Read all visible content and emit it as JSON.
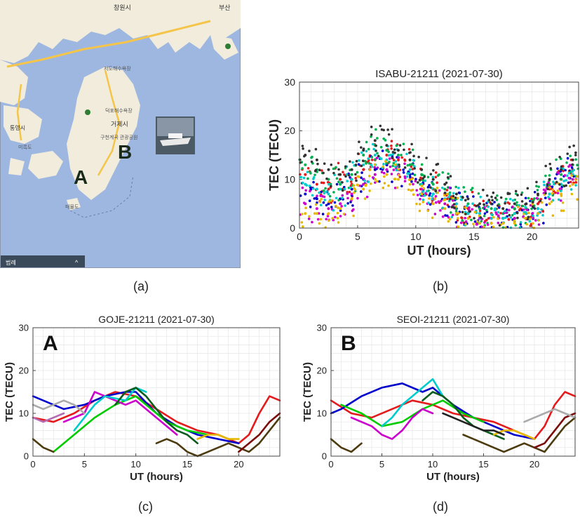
{
  "panels": {
    "a": "(a)",
    "b": "(b)",
    "c": "(c)",
    "d": "(d)"
  },
  "map": {
    "labels": [
      {
        "text": "창원시"
      },
      {
        "text": "부산"
      },
      {
        "text": "통영시"
      },
      {
        "text": "거제시"
      },
      {
        "text": "구천계곡 관광공원"
      },
      {
        "text": "덕포해수욕장"
      },
      {
        "text": "저도해수욕장"
      },
      {
        "text": "미륵도"
      },
      {
        "text": "매물도"
      }
    ],
    "site_a": "A",
    "site_b": "B",
    "footer_text": "범례",
    "colors": {
      "sea": "#9db7e1",
      "land": "#f1ecdc",
      "road": "#f5c54a"
    }
  },
  "chart_data": [
    {
      "id": "b",
      "type": "scatter",
      "title": "ISABU-21211 (2021-07-30)",
      "xlabel": "UT (hours)",
      "ylabel": "TEC (TECU)",
      "xlim": [
        0,
        24
      ],
      "ylim": [
        0,
        30
      ],
      "xticks": [
        0,
        5,
        10,
        15,
        20
      ],
      "yticks": [
        0,
        10,
        20,
        30
      ],
      "grid": true,
      "series": [
        {
          "color": "#e41a1c",
          "x": [
            0.5,
            1.5,
            2.5,
            3.5,
            4.5,
            5.5,
            6.5,
            7.5,
            8.5,
            9.5,
            10.5,
            11.5,
            12.5,
            13.5,
            14.5,
            15.5,
            16.5,
            17.5,
            18.5,
            19.5,
            20.5,
            21.5,
            22.5,
            23.5
          ],
          "values": [
            11,
            9,
            8,
            10,
            9,
            12,
            14,
            15,
            14,
            13,
            10,
            8,
            7,
            5,
            4,
            3,
            3,
            2,
            3,
            3,
            5,
            8,
            10,
            12
          ]
        },
        {
          "color": "#0000cc",
          "x": [
            0.5,
            1.5,
            2.5,
            3.5,
            4.5,
            5.5,
            6.5,
            7.5,
            8.5,
            9.5,
            10.5,
            11.5,
            12.5,
            13.5,
            14.5,
            15.5,
            16.5,
            17.5,
            18.5,
            19.5,
            20.5,
            21.5,
            22.5,
            23.5
          ],
          "values": [
            7,
            6,
            5,
            6,
            8,
            10,
            12,
            13,
            12,
            11,
            9,
            7,
            6,
            4,
            3,
            2,
            2,
            2,
            2,
            3,
            4,
            7,
            9,
            11
          ]
        },
        {
          "color": "#00b050",
          "x": [
            0.5,
            1.5,
            2.5,
            3.5,
            4.5,
            5.5,
            6.5,
            7.5,
            8.5,
            9.5,
            10.5,
            11.5,
            12.5,
            13.5,
            14.5,
            15.5,
            16.5,
            17.5,
            18.5,
            19.5,
            20.5,
            21.5,
            22.5,
            23.5
          ],
          "values": [
            13,
            12,
            10,
            9,
            11,
            15,
            17,
            16,
            15,
            13,
            11,
            9,
            8,
            6,
            5,
            4,
            4,
            3,
            4,
            4,
            6,
            9,
            11,
            13
          ]
        },
        {
          "color": "#cc00cc",
          "x": [
            0.5,
            1.5,
            2.5,
            3.5,
            4.5,
            5.5,
            6.5,
            7.5,
            8.5,
            9.5,
            10.5,
            11.5,
            12.5,
            13.5,
            14.5,
            15.5,
            16.5,
            17.5,
            18.5,
            19.5,
            20.5,
            21.5,
            22.5,
            23.5
          ],
          "values": [
            5,
            4,
            4,
            5,
            7,
            9,
            11,
            12,
            11,
            10,
            8,
            6,
            5,
            3,
            2,
            2,
            1,
            1,
            2,
            2,
            3,
            6,
            8,
            10
          ]
        },
        {
          "color": "#00cccc",
          "x": [
            0.5,
            1.5,
            2.5,
            3.5,
            4.5,
            5.5,
            6.5,
            7.5,
            8.5,
            9.5,
            10.5,
            11.5,
            12.5,
            13.5,
            14.5,
            15.5,
            16.5,
            17.5,
            18.5,
            19.5,
            20.5,
            21.5,
            22.5,
            23.5
          ],
          "values": [
            9,
            8,
            7,
            8,
            10,
            13,
            15,
            14,
            13,
            12,
            9,
            7,
            6,
            5,
            3,
            3,
            2,
            2,
            3,
            3,
            4,
            7,
            9,
            11
          ]
        },
        {
          "color": "#e6b800",
          "x": [
            0.5,
            1.5,
            2.5,
            3.5,
            4.5,
            5.5,
            6.5,
            7.5,
            8.5,
            9.5,
            10.5,
            11.5,
            12.5,
            13.5,
            14.5,
            15.5,
            16.5,
            17.5,
            18.5,
            19.5,
            20.5,
            21.5,
            22.5,
            23.5
          ],
          "values": [
            3,
            3,
            3,
            4,
            6,
            8,
            10,
            11,
            10,
            9,
            7,
            5,
            4,
            3,
            2,
            1,
            1,
            1,
            1,
            2,
            3,
            5,
            7,
            9
          ]
        },
        {
          "color": "#333333",
          "x": [
            0.5,
            1.5,
            2.5,
            3.5,
            4.5,
            5.5,
            6.5,
            7.5,
            8.5,
            9.5,
            10.5,
            11.5,
            12.5,
            13.5,
            14.5,
            15.5,
            16.5,
            17.5,
            18.5,
            19.5,
            20.5,
            21.5,
            22.5,
            23.5
          ],
          "values": [
            15,
            14,
            12,
            11,
            12,
            16,
            18,
            17,
            16,
            14,
            12,
            10,
            9,
            7,
            6,
            5,
            5,
            4,
            5,
            5,
            7,
            10,
            12,
            14
          ]
        }
      ]
    },
    {
      "id": "c",
      "type": "line",
      "title": "GOJE-21211 (2021-07-30)",
      "site_label": "A",
      "xlabel": "UT (hours)",
      "ylabel": "TEC (TECU)",
      "xlim": [
        0,
        24
      ],
      "ylim": [
        0,
        30
      ],
      "xticks": [
        0,
        5,
        10,
        15,
        20
      ],
      "yticks": [
        0,
        10,
        20,
        30
      ],
      "grid": true,
      "series": [
        {
          "color": "#e41a1c",
          "x": [
            0,
            2,
            4,
            6,
            8,
            10,
            12,
            14,
            16,
            18,
            20,
            21,
            22,
            23,
            24
          ],
          "values": [
            9,
            8,
            10,
            13,
            15,
            14,
            11,
            8,
            6,
            5,
            3,
            5,
            10,
            14,
            13
          ]
        },
        {
          "color": "#0000cc",
          "x": [
            0,
            1,
            3,
            5,
            7,
            9,
            10,
            12,
            14,
            16,
            18,
            20
          ],
          "values": [
            14,
            13,
            11,
            12,
            14,
            15,
            15,
            10,
            7,
            5,
            4,
            3
          ]
        },
        {
          "color": "#00cc00",
          "x": [
            2,
            4,
            6,
            8,
            10,
            11,
            13,
            15,
            17
          ],
          "values": [
            1,
            5,
            9,
            12,
            14,
            12,
            8,
            6,
            5
          ]
        },
        {
          "color": "#cc00cc",
          "x": [
            3,
            5,
            6,
            7,
            9,
            10,
            12,
            14
          ],
          "values": [
            8,
            10,
            15,
            14,
            12,
            13,
            9,
            5
          ]
        },
        {
          "color": "#00cccc",
          "x": [
            4,
            5,
            6,
            7,
            9,
            10,
            11
          ],
          "values": [
            6,
            9,
            12,
            14,
            13,
            16,
            15
          ]
        },
        {
          "color": "#0b5d1e",
          "x": [
            8,
            9,
            10,
            11,
            12,
            13,
            14,
            15,
            16
          ],
          "values": [
            12,
            15,
            16,
            14,
            11,
            8,
            6,
            5,
            3
          ]
        },
        {
          "color": "#4d3b10",
          "x": [
            0,
            1,
            2
          ],
          "values": [
            4,
            2,
            1
          ]
        },
        {
          "color": "#4d3b10",
          "x": [
            12,
            13,
            14,
            15,
            16,
            17,
            18,
            19,
            20,
            21,
            22,
            23,
            24
          ],
          "values": [
            3,
            4,
            3,
            1,
            0,
            1,
            2,
            3,
            2,
            1,
            3,
            6,
            9
          ]
        },
        {
          "color": "#7b0a0a",
          "x": [
            20,
            21,
            22,
            23,
            24
          ],
          "values": [
            1,
            3,
            5,
            8,
            10
          ]
        },
        {
          "color": "#aaaaaa",
          "x": [
            0,
            1,
            2,
            3,
            4,
            5
          ],
          "values": [
            12,
            11,
            12,
            13,
            12,
            10
          ]
        },
        {
          "color": "#e6b800",
          "x": [
            16,
            17,
            18,
            19,
            20
          ],
          "values": [
            4,
            5,
            5,
            4,
            4
          ]
        },
        {
          "color": "#b46bb3",
          "x": [
            0,
            1,
            2,
            3
          ],
          "values": [
            9,
            8,
            9,
            10
          ]
        }
      ]
    },
    {
      "id": "d",
      "type": "line",
      "title": "SEOI-21211 (2021-07-30)",
      "site_label": "B",
      "xlabel": "UT (hours)",
      "ylabel": "TEC (TECU)",
      "xlim": [
        0,
        24
      ],
      "ylim": [
        0,
        30
      ],
      "xticks": [
        0,
        5,
        10,
        15,
        20
      ],
      "yticks": [
        0,
        10,
        20,
        30
      ],
      "grid": true,
      "series": [
        {
          "color": "#e41a1c",
          "x": [
            0,
            2,
            4,
            6,
            8,
            10,
            12,
            14,
            16,
            18,
            20,
            21,
            22,
            23,
            24
          ],
          "values": [
            13,
            10,
            9,
            11,
            13,
            12,
            10,
            9,
            8,
            6,
            4,
            7,
            12,
            15,
            14
          ]
        },
        {
          "color": "#0000cc",
          "x": [
            0,
            1,
            3,
            5,
            7,
            9,
            10,
            12,
            14,
            16,
            18,
            20
          ],
          "values": [
            10,
            11,
            14,
            16,
            17,
            15,
            16,
            12,
            9,
            7,
            5,
            4
          ]
        },
        {
          "color": "#00cc00",
          "x": [
            1,
            3,
            5,
            7,
            9,
            11,
            13,
            15
          ],
          "values": [
            12,
            10,
            7,
            8,
            11,
            13,
            10,
            8
          ]
        },
        {
          "color": "#cc00cc",
          "x": [
            2,
            4,
            5,
            6,
            7,
            8,
            9,
            10
          ],
          "values": [
            9,
            7,
            5,
            4,
            6,
            9,
            11,
            10
          ]
        },
        {
          "color": "#00cccc",
          "x": [
            5,
            6,
            7,
            8,
            9,
            10,
            11
          ],
          "values": [
            7,
            9,
            12,
            14,
            16,
            18,
            14
          ]
        },
        {
          "color": "#0b5d1e",
          "x": [
            9,
            10,
            11,
            12,
            13,
            14,
            15,
            16,
            17
          ],
          "values": [
            13,
            15,
            14,
            12,
            9,
            7,
            6,
            5,
            4
          ]
        },
        {
          "color": "#4d3b10",
          "x": [
            0,
            1,
            2,
            3
          ],
          "values": [
            4,
            2,
            1,
            3
          ]
        },
        {
          "color": "#4d3b10",
          "x": [
            13,
            14,
            15,
            16,
            17,
            18,
            19,
            20,
            21,
            22,
            23,
            24
          ],
          "values": [
            5,
            4,
            3,
            2,
            1,
            2,
            3,
            2,
            1,
            4,
            7,
            9
          ]
        },
        {
          "color": "#7b0a0a",
          "x": [
            20,
            21,
            22,
            23,
            24
          ],
          "values": [
            2,
            3,
            6,
            9,
            10
          ]
        },
        {
          "color": "#aaaaaa",
          "x": [
            19,
            20,
            21,
            22,
            23,
            24
          ],
          "values": [
            8,
            9,
            10,
            11,
            10,
            9
          ]
        },
        {
          "color": "#e6b800",
          "x": [
            16,
            17,
            18,
            19,
            20
          ],
          "values": [
            5,
            6,
            6,
            5,
            4
          ]
        },
        {
          "color": "#222222",
          "x": [
            11,
            12,
            13,
            14,
            15,
            16,
            17
          ],
          "values": [
            10,
            9,
            8,
            7,
            6,
            6,
            5
          ]
        }
      ]
    }
  ]
}
